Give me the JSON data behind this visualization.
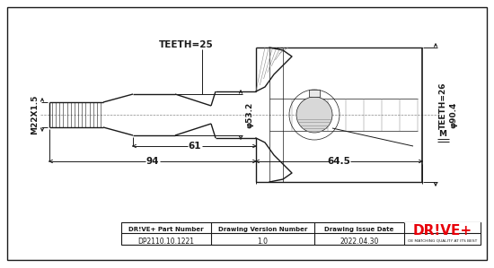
{
  "bg_color": "#ffffff",
  "line_color": "#1a1a1a",
  "watermark_color": "#cccccc",
  "col1_header": "DR!VE+ Part Number",
  "col2_header": "Drawing Version Number",
  "col3_header": "Drawing Issue Date",
  "col1_val": "DP2110.10.1221",
  "col2_val": "1.0",
  "col3_val": "2022.04.30",
  "dim_teeth25": "TEETH=25",
  "dim_phi532": "φ53.2",
  "dim_m22x15": "M22X1.5",
  "dim_61": "61",
  "dim_94": "94",
  "dim_645": "64.5",
  "dim_teeth26": "TEETH=26",
  "dim_phi904": "φ90.4",
  "dim_m": "M",
  "drive_plus_red": "#e8000a",
  "drive_plus_subtext": "OE MATCHING QUALITY AT ITS BEST",
  "fig_w": 5.5,
  "fig_h": 2.99,
  "dpi": 100
}
